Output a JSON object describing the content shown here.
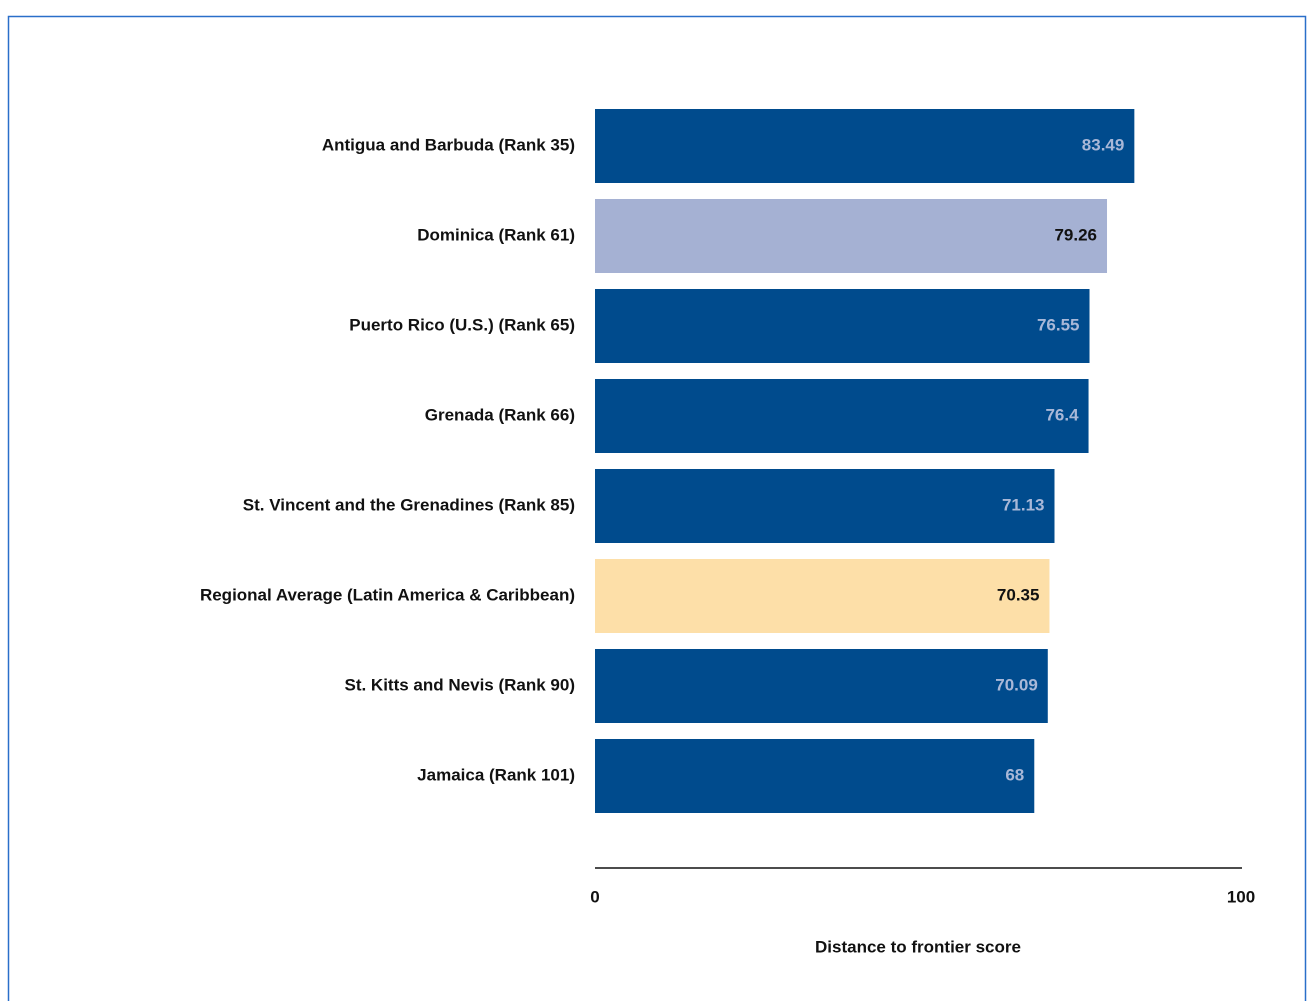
{
  "chart_data": {
    "type": "hbar",
    "categories": [
      "Antigua and Barbuda (Rank 35)",
      "Dominica (Rank 61)",
      "Puerto Rico (U.S.) (Rank 65)",
      "Grenada (Rank 66)",
      "St. Vincent and the Grenadines (Rank 85)",
      "Regional Average (Latin America & Caribbean)",
      "St. Kitts and Nevis (Rank 90)",
      "Jamaica (Rank 101)"
    ],
    "values": [
      83.49,
      79.26,
      76.55,
      76.4,
      71.13,
      70.35,
      70.09,
      68
    ],
    "colors": [
      "#004b8d",
      "#a5b1d3",
      "#004b8d",
      "#004b8d",
      "#004b8d",
      "#fddfa8",
      "#004b8d",
      "#004b8d"
    ],
    "label_colors": [
      "#a9b8d8",
      "#111111",
      "#a9b8d8",
      "#a9b8d8",
      "#a9b8d8",
      "#111111",
      "#a9b8d8",
      "#a9b8d8"
    ],
    "xlabel": "Distance to frontier score",
    "xlim": [
      0,
      100
    ],
    "xticks": [
      0,
      100
    ],
    "grid": false
  }
}
